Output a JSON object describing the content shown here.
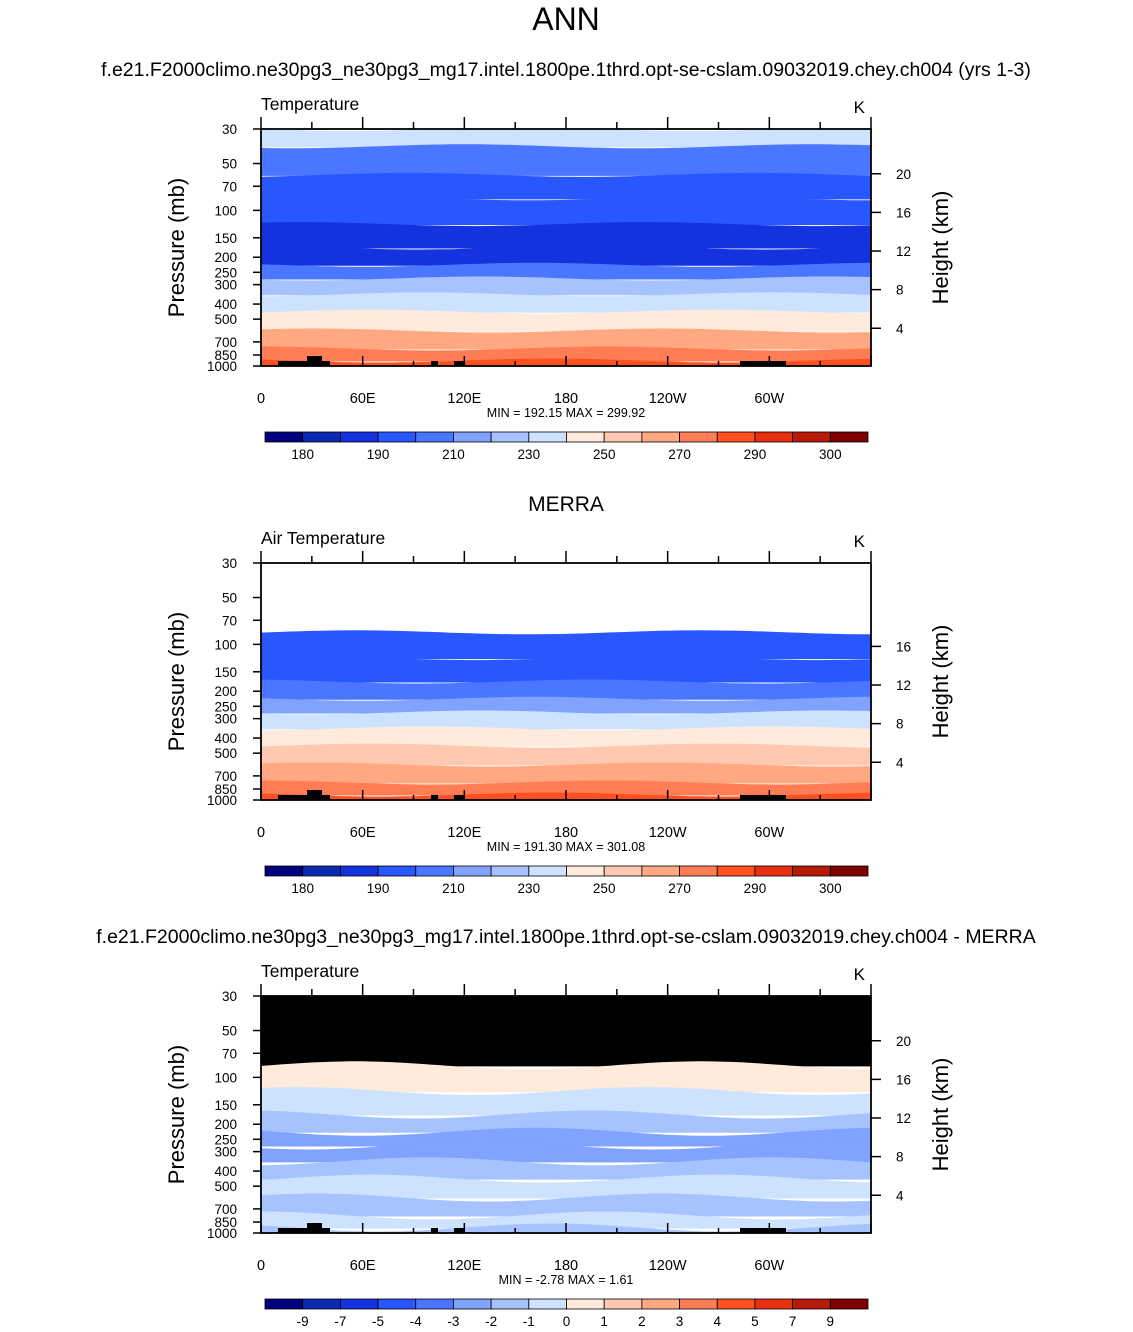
{
  "page": {
    "title": "ANN",
    "panel_headers": [
      "f.e21.F2000climo.ne30pg3_ne30pg3_mg17.intel.1800pe.1thrd.opt-se-cslam.09032019.chey.ch004 (yrs 1-3)",
      "MERRA",
      "f.e21.F2000climo.ne30pg3_ne30pg3_mg17.intel.1800pe.1thrd.opt-se-cslam.09032019.chey.ch004 - MERRA"
    ]
  },
  "chart_data": [
    {
      "type": "heatmap",
      "title": "Temperature",
      "units": "K",
      "ylabel": "Pressure (mb)",
      "ylabel_right": "Height (km)",
      "x_ticks": [
        "0",
        "60E",
        "120E",
        "180",
        "120W",
        "60W"
      ],
      "y_ticks": [
        "30",
        "50",
        "70",
        "100",
        "150",
        "200",
        "250",
        "300",
        "400",
        "500",
        "700",
        "850",
        "1000"
      ],
      "height_ticks": [
        "20",
        "16",
        "12",
        "8",
        "4"
      ],
      "stats": "MIN = 192.15  MAX = 299.92",
      "colorbar_labels": [
        "180",
        "190",
        "210",
        "230",
        "250",
        "270",
        "290",
        "300"
      ],
      "pressure_levels": [
        30,
        50,
        70,
        100,
        150,
        200,
        250,
        300,
        400,
        500,
        700,
        850,
        1000
      ],
      "band_color_index": [
        7,
        4,
        3,
        3,
        2,
        2,
        4,
        6,
        7,
        8,
        10,
        11,
        12
      ],
      "missing_above": null
    },
    {
      "type": "heatmap",
      "title": "Air Temperature",
      "units": "K",
      "ylabel": "Pressure (mb)",
      "ylabel_right": "Height (km)",
      "x_ticks": [
        "0",
        "60E",
        "120E",
        "180",
        "120W",
        "60W"
      ],
      "y_ticks": [
        "30",
        "50",
        "70",
        "100",
        "150",
        "200",
        "250",
        "300",
        "400",
        "500",
        "700",
        "850",
        "1000"
      ],
      "height_ticks": [
        "16",
        "12",
        "8",
        "4"
      ],
      "stats": "MIN = 191.30  MAX = 301.08",
      "colorbar_labels": [
        "180",
        "190",
        "210",
        "230",
        "250",
        "270",
        "290",
        "300"
      ],
      "pressure_levels": [
        30,
        50,
        70,
        100,
        150,
        200,
        250,
        300,
        400,
        500,
        700,
        850,
        1000
      ],
      "band_color_index": [
        -1,
        -1,
        -1,
        3,
        3,
        4,
        5,
        7,
        8,
        9,
        10,
        11,
        12
      ],
      "missing_above": 100
    },
    {
      "type": "heatmap",
      "title": "Temperature",
      "units": "K",
      "ylabel": "Pressure (mb)",
      "ylabel_right": "Height (km)",
      "x_ticks": [
        "0",
        "60E",
        "120E",
        "180",
        "120W",
        "60W"
      ],
      "y_ticks": [
        "30",
        "50",
        "70",
        "100",
        "150",
        "200",
        "250",
        "300",
        "400",
        "500",
        "700",
        "850",
        "1000"
      ],
      "height_ticks": [
        "20",
        "16",
        "12",
        "8",
        "4"
      ],
      "stats": "MIN =  -2.78  MAX =   1.61",
      "colorbar_labels": [
        "-9",
        "-7",
        "-5",
        "-4",
        "-3",
        "-2",
        "-1",
        "0",
        "1",
        "2",
        "3",
        "4",
        "5",
        "7",
        "9"
      ],
      "pressure_levels": [
        30,
        50,
        70,
        100,
        150,
        200,
        250,
        300,
        400,
        500,
        700,
        850,
        1000
      ],
      "band_color_index": [
        -2,
        -2,
        -2,
        8,
        7,
        6,
        5,
        5,
        6,
        7,
        6,
        7,
        6
      ],
      "missing_above": 100
    }
  ],
  "colormap": [
    "#00007f",
    "#0a29b0",
    "#1432de",
    "#2856ff",
    "#4b76ff",
    "#7fa3ff",
    "#a6c3ff",
    "#cce2ff",
    "#ffeadc",
    "#ffc8b0",
    "#ffa882",
    "#ff7d55",
    "#ff5020",
    "#e83010",
    "#b81a0a",
    "#7f0000"
  ]
}
